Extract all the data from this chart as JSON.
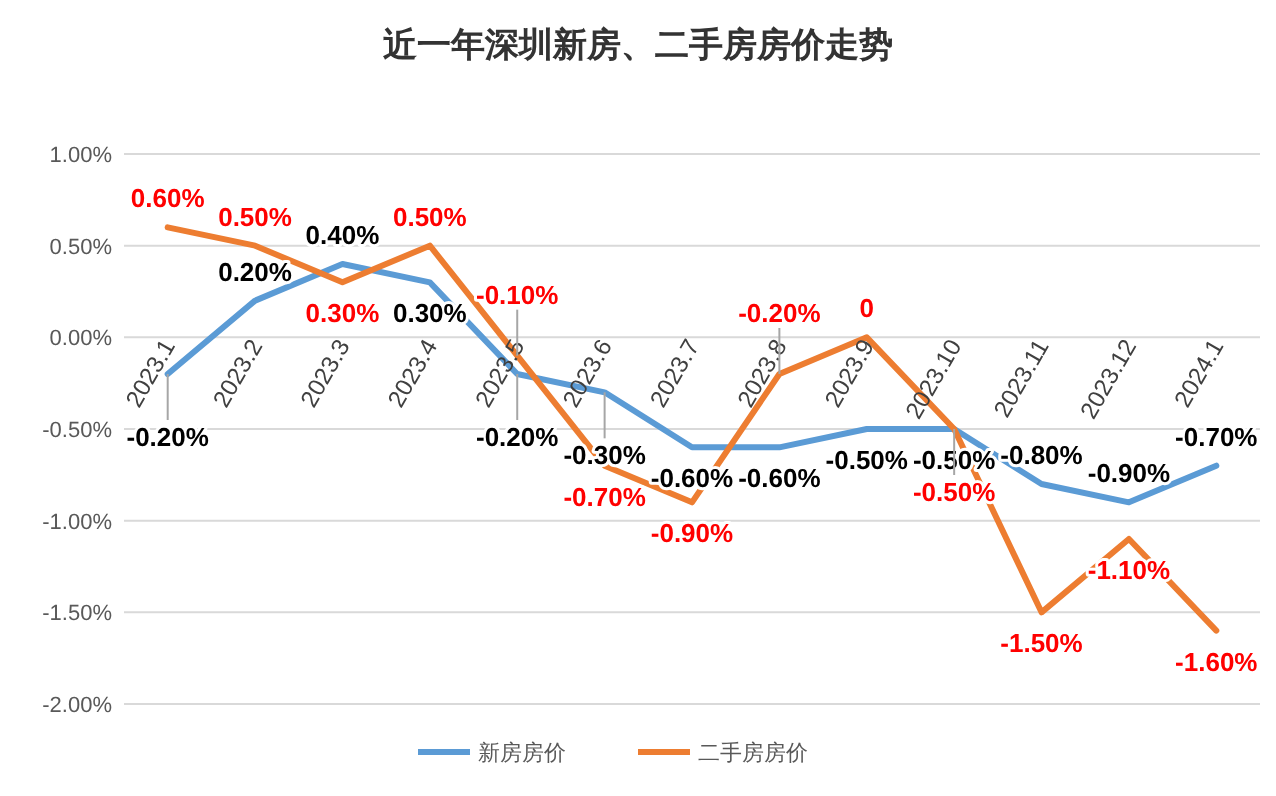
{
  "chart_data": {
    "type": "line",
    "title": "近一年深圳新房、二手房房价走势",
    "categories": [
      "2023.1",
      "2023.2",
      "2023.3",
      "2023.4",
      "2023.5",
      "2023.6",
      "2023.7",
      "2023.8",
      "2023.9",
      "2023.10",
      "2023.11",
      "2023.12",
      "2024.1"
    ],
    "series": [
      {
        "name": "新房房价",
        "color": "#5b9bd5",
        "values": [
          -0.2,
          0.2,
          0.4,
          0.3,
          -0.2,
          -0.3,
          -0.6,
          -0.6,
          -0.5,
          -0.5,
          -0.8,
          -0.9,
          -0.7
        ],
        "value_labels": [
          "-0.20%",
          "0.20%",
          "0.40%",
          "0.30%",
          "-0.20%",
          "-0.30%",
          "-0.60%",
          "-0.60%",
          "-0.50%",
          "-0.50%",
          "-0.80%",
          "-0.90%",
          "-0.70%"
        ]
      },
      {
        "name": "二手房房价",
        "color": "#ed7d31",
        "values": [
          0.6,
          0.5,
          0.3,
          0.5,
          -0.1,
          -0.7,
          -0.9,
          -0.2,
          0,
          -0.5,
          -1.5,
          -1.1,
          -1.6
        ],
        "value_labels": [
          "0.60%",
          "0.50%",
          "0.30%",
          "0.50%",
          "-0.10%",
          "-0.70%",
          "-0.90%",
          "-0.20%",
          "0",
          "-0.50%",
          "-1.50%",
          "-1.10%",
          "-1.60%"
        ]
      }
    ],
    "ylim": [
      -2,
      1
    ],
    "yticks": [
      {
        "value": 1,
        "label": "1.00%"
      },
      {
        "value": 0.5,
        "label": "0.50%"
      },
      {
        "value": 0,
        "label": "0.00%"
      },
      {
        "value": -0.5,
        "label": "-0.50%"
      },
      {
        "value": -1,
        "label": "-1.00%"
      },
      {
        "value": -1.5,
        "label": "-1.50%"
      },
      {
        "value": -2,
        "label": "-2.00%"
      }
    ],
    "grid": "y",
    "legend": "bottom",
    "marker": "none",
    "line_style": "solid"
  }
}
